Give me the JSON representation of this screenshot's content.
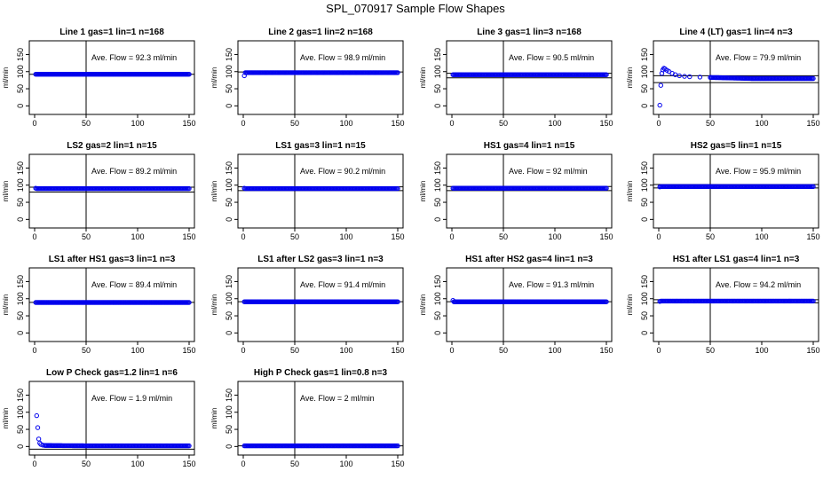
{
  "title": "SPL_070917  Sample Flow Shapes",
  "chart_data": [
    {
      "type": "scatter",
      "title": "Line 1 gas=1 lin=1 n=168",
      "ylabel": "ml/min",
      "annotation": "Ave. Flow =  92.3  ml/min",
      "xlim": [
        0,
        150
      ],
      "ylim": [
        -25,
        190
      ],
      "xticks": [
        0,
        50,
        100,
        150
      ],
      "yticks": [
        0,
        50,
        100,
        150
      ],
      "vline": 50,
      "hlines": [
        92.3
      ],
      "series": [
        {
          "shape": "flat",
          "start": [
            1,
            92.3
          ],
          "level": 92.3
        }
      ]
    },
    {
      "type": "scatter",
      "title": "Line 2 gas=1 lin=2 n=168",
      "ylabel": "ml/min",
      "annotation": "Ave. Flow =  98.9  ml/min",
      "xlim": [
        0,
        150
      ],
      "ylim": [
        -25,
        190
      ],
      "xticks": [
        0,
        50,
        100,
        150
      ],
      "yticks": [
        0,
        50,
        100,
        150
      ],
      "vline": 50,
      "hlines": [
        98.9
      ],
      "series": [
        {
          "shape": "flat",
          "start": [
            1,
            88
          ],
          "level": 97
        }
      ]
    },
    {
      "type": "scatter",
      "title": "Line 3 gas=1 lin=3 n=168",
      "ylabel": "ml/min",
      "annotation": "Ave. Flow =  90.5  ml/min",
      "xlim": [
        0,
        150
      ],
      "ylim": [
        -25,
        190
      ],
      "xticks": [
        0,
        50,
        100,
        150
      ],
      "yticks": [
        0,
        50,
        100,
        150
      ],
      "vline": 50,
      "hlines": [
        95,
        82
      ],
      "series": [
        {
          "shape": "flat",
          "start": [
            1,
            91
          ],
          "level": 91
        }
      ]
    },
    {
      "type": "scatter",
      "title": "Line 4 (LT) gas=1 lin=4 n=3",
      "ylabel": "ml/min",
      "annotation": "Ave. Flow =  79.9  ml/min",
      "xlim": [
        0,
        150
      ],
      "ylim": [
        -25,
        190
      ],
      "xticks": [
        0,
        50,
        100,
        150
      ],
      "yticks": [
        0,
        50,
        100,
        150
      ],
      "vline": 50,
      "hlines": [
        88,
        68
      ],
      "series": [
        {
          "shape": "overshoot",
          "early": [
            [
              1,
              2
            ],
            [
              2,
              60
            ],
            [
              3,
              95
            ],
            [
              4,
              105
            ],
            [
              5,
              110
            ],
            [
              6,
              108
            ],
            [
              8,
              104
            ],
            [
              10,
              100
            ],
            [
              13,
              95
            ],
            [
              16,
              91
            ],
            [
              20,
              88
            ],
            [
              25,
              86
            ],
            [
              30,
              85
            ],
            [
              40,
              84
            ],
            [
              50,
              83
            ]
          ],
          "level": 80
        }
      ]
    },
    {
      "type": "scatter",
      "title": "LS2 gas=2 lin=1 n=15",
      "ylabel": "ml/min",
      "annotation": "Ave. Flow =  89.2  ml/min",
      "xlim": [
        0,
        150
      ],
      "ylim": [
        -25,
        190
      ],
      "xticks": [
        0,
        50,
        100,
        150
      ],
      "yticks": [
        0,
        50,
        100,
        150
      ],
      "vline": 50,
      "hlines": [
        94,
        80
      ],
      "series": [
        {
          "shape": "flat",
          "start": [
            1,
            91
          ],
          "level": 90
        }
      ]
    },
    {
      "type": "scatter",
      "title": "LS1 gas=3 lin=1 n=15",
      "ylabel": "ml/min",
      "annotation": "Ave. Flow =  90.2  ml/min",
      "xlim": [
        0,
        150
      ],
      "ylim": [
        -25,
        190
      ],
      "xticks": [
        0,
        50,
        100,
        150
      ],
      "yticks": [
        0,
        50,
        100,
        150
      ],
      "vline": 50,
      "hlines": [
        95,
        84
      ],
      "series": [
        {
          "shape": "flat",
          "start": [
            1,
            91
          ],
          "level": 90
        }
      ]
    },
    {
      "type": "scatter",
      "title": "HS1 gas=4 lin=1 n=15",
      "ylabel": "ml/min",
      "annotation": "Ave. Flow =  92  ml/min",
      "xlim": [
        0,
        150
      ],
      "ylim": [
        -25,
        190
      ],
      "xticks": [
        0,
        50,
        100,
        150
      ],
      "yticks": [
        0,
        50,
        100,
        150
      ],
      "vline": 50,
      "hlines": [
        96,
        84
      ],
      "series": [
        {
          "shape": "flat",
          "start": [
            1,
            91
          ],
          "level": 91
        }
      ]
    },
    {
      "type": "scatter",
      "title": "HS2 gas=5 lin=1 n=15",
      "ylabel": "ml/min",
      "annotation": "Ave. Flow =  95.9  ml/min",
      "xlim": [
        0,
        150
      ],
      "ylim": [
        -25,
        190
      ],
      "xticks": [
        0,
        50,
        100,
        150
      ],
      "yticks": [
        0,
        50,
        100,
        150
      ],
      "vline": 50,
      "hlines": [
        102,
        92
      ],
      "series": [
        {
          "shape": "flat",
          "start": [
            1,
            95
          ],
          "level": 96
        }
      ]
    },
    {
      "type": "scatter",
      "title": "LS1 after HS1 gas=3 lin=1 n=3",
      "ylabel": "ml/min",
      "annotation": "Ave. Flow =  89.4  ml/min",
      "xlim": [
        0,
        150
      ],
      "ylim": [
        -25,
        190
      ],
      "xticks": [
        0,
        50,
        100,
        150
      ],
      "yticks": [
        0,
        50,
        100,
        150
      ],
      "vline": 50,
      "hlines": [
        89.4
      ],
      "series": [
        {
          "shape": "flat",
          "start": [
            1,
            89
          ],
          "level": 89
        }
      ]
    },
    {
      "type": "scatter",
      "title": "LS1 after LS2 gas=3 lin=1 n=3",
      "ylabel": "ml/min",
      "annotation": "Ave. Flow =  91.4  ml/min",
      "xlim": [
        0,
        150
      ],
      "ylim": [
        -25,
        190
      ],
      "xticks": [
        0,
        50,
        100,
        150
      ],
      "yticks": [
        0,
        50,
        100,
        150
      ],
      "vline": 50,
      "hlines": [
        91.4
      ],
      "series": [
        {
          "shape": "flat",
          "start": [
            1,
            91
          ],
          "level": 91
        }
      ]
    },
    {
      "type": "scatter",
      "title": "HS1 after HS2 gas=4 lin=1 n=3",
      "ylabel": "ml/min",
      "annotation": "Ave. Flow =  91.3  ml/min",
      "xlim": [
        0,
        150
      ],
      "ylim": [
        -25,
        190
      ],
      "xticks": [
        0,
        50,
        100,
        150
      ],
      "yticks": [
        0,
        50,
        100,
        150
      ],
      "vline": 50,
      "hlines": [
        91.3
      ],
      "series": [
        {
          "shape": "flat",
          "start": [
            1,
            95
          ],
          "level": 91
        }
      ]
    },
    {
      "type": "scatter",
      "title": "HS1 after LS1 gas=4 lin=1 n=3",
      "ylabel": "ml/min",
      "annotation": "Ave. Flow =  94.2  ml/min",
      "xlim": [
        0,
        150
      ],
      "ylim": [
        -25,
        190
      ],
      "xticks": [
        0,
        50,
        100,
        150
      ],
      "yticks": [
        0,
        50,
        100,
        150
      ],
      "vline": 50,
      "hlines": [
        97,
        88
      ],
      "series": [
        {
          "shape": "flat",
          "start": [
            1,
            92
          ],
          "level": 93
        }
      ]
    },
    {
      "type": "scatter",
      "title": "Low P Check gas=1.2 lin=1 n=6",
      "ylabel": "ml/min",
      "annotation": "Ave. Flow =  1.9  ml/min",
      "xlim": [
        0,
        150
      ],
      "ylim": [
        -25,
        190
      ],
      "xticks": [
        0,
        50,
        100,
        150
      ],
      "yticks": [
        0,
        50,
        100,
        150
      ],
      "vline": 50,
      "hlines": [
        -8
      ],
      "series": [
        {
          "shape": "decay",
          "early": [
            [
              2,
              90
            ],
            [
              3,
              55
            ],
            [
              4,
              22
            ],
            [
              5,
              10
            ],
            [
              6,
              6
            ],
            [
              8,
              4
            ],
            [
              10,
              3
            ]
          ],
          "level": 2
        }
      ]
    },
    {
      "type": "scatter",
      "title": "High P Check gas=1 lin=0.8 n=3",
      "ylabel": "ml/min",
      "annotation": "Ave. Flow =  2  ml/min",
      "xlim": [
        0,
        150
      ],
      "ylim": [
        -25,
        190
      ],
      "xticks": [
        0,
        50,
        100,
        150
      ],
      "yticks": [
        0,
        50,
        100,
        150
      ],
      "vline": 50,
      "hlines": [
        2
      ],
      "series": [
        {
          "shape": "flat",
          "start": [
            1,
            2
          ],
          "level": 2
        }
      ]
    }
  ],
  "colors": {
    "points": "#0000ee",
    "axis": "#000000"
  }
}
